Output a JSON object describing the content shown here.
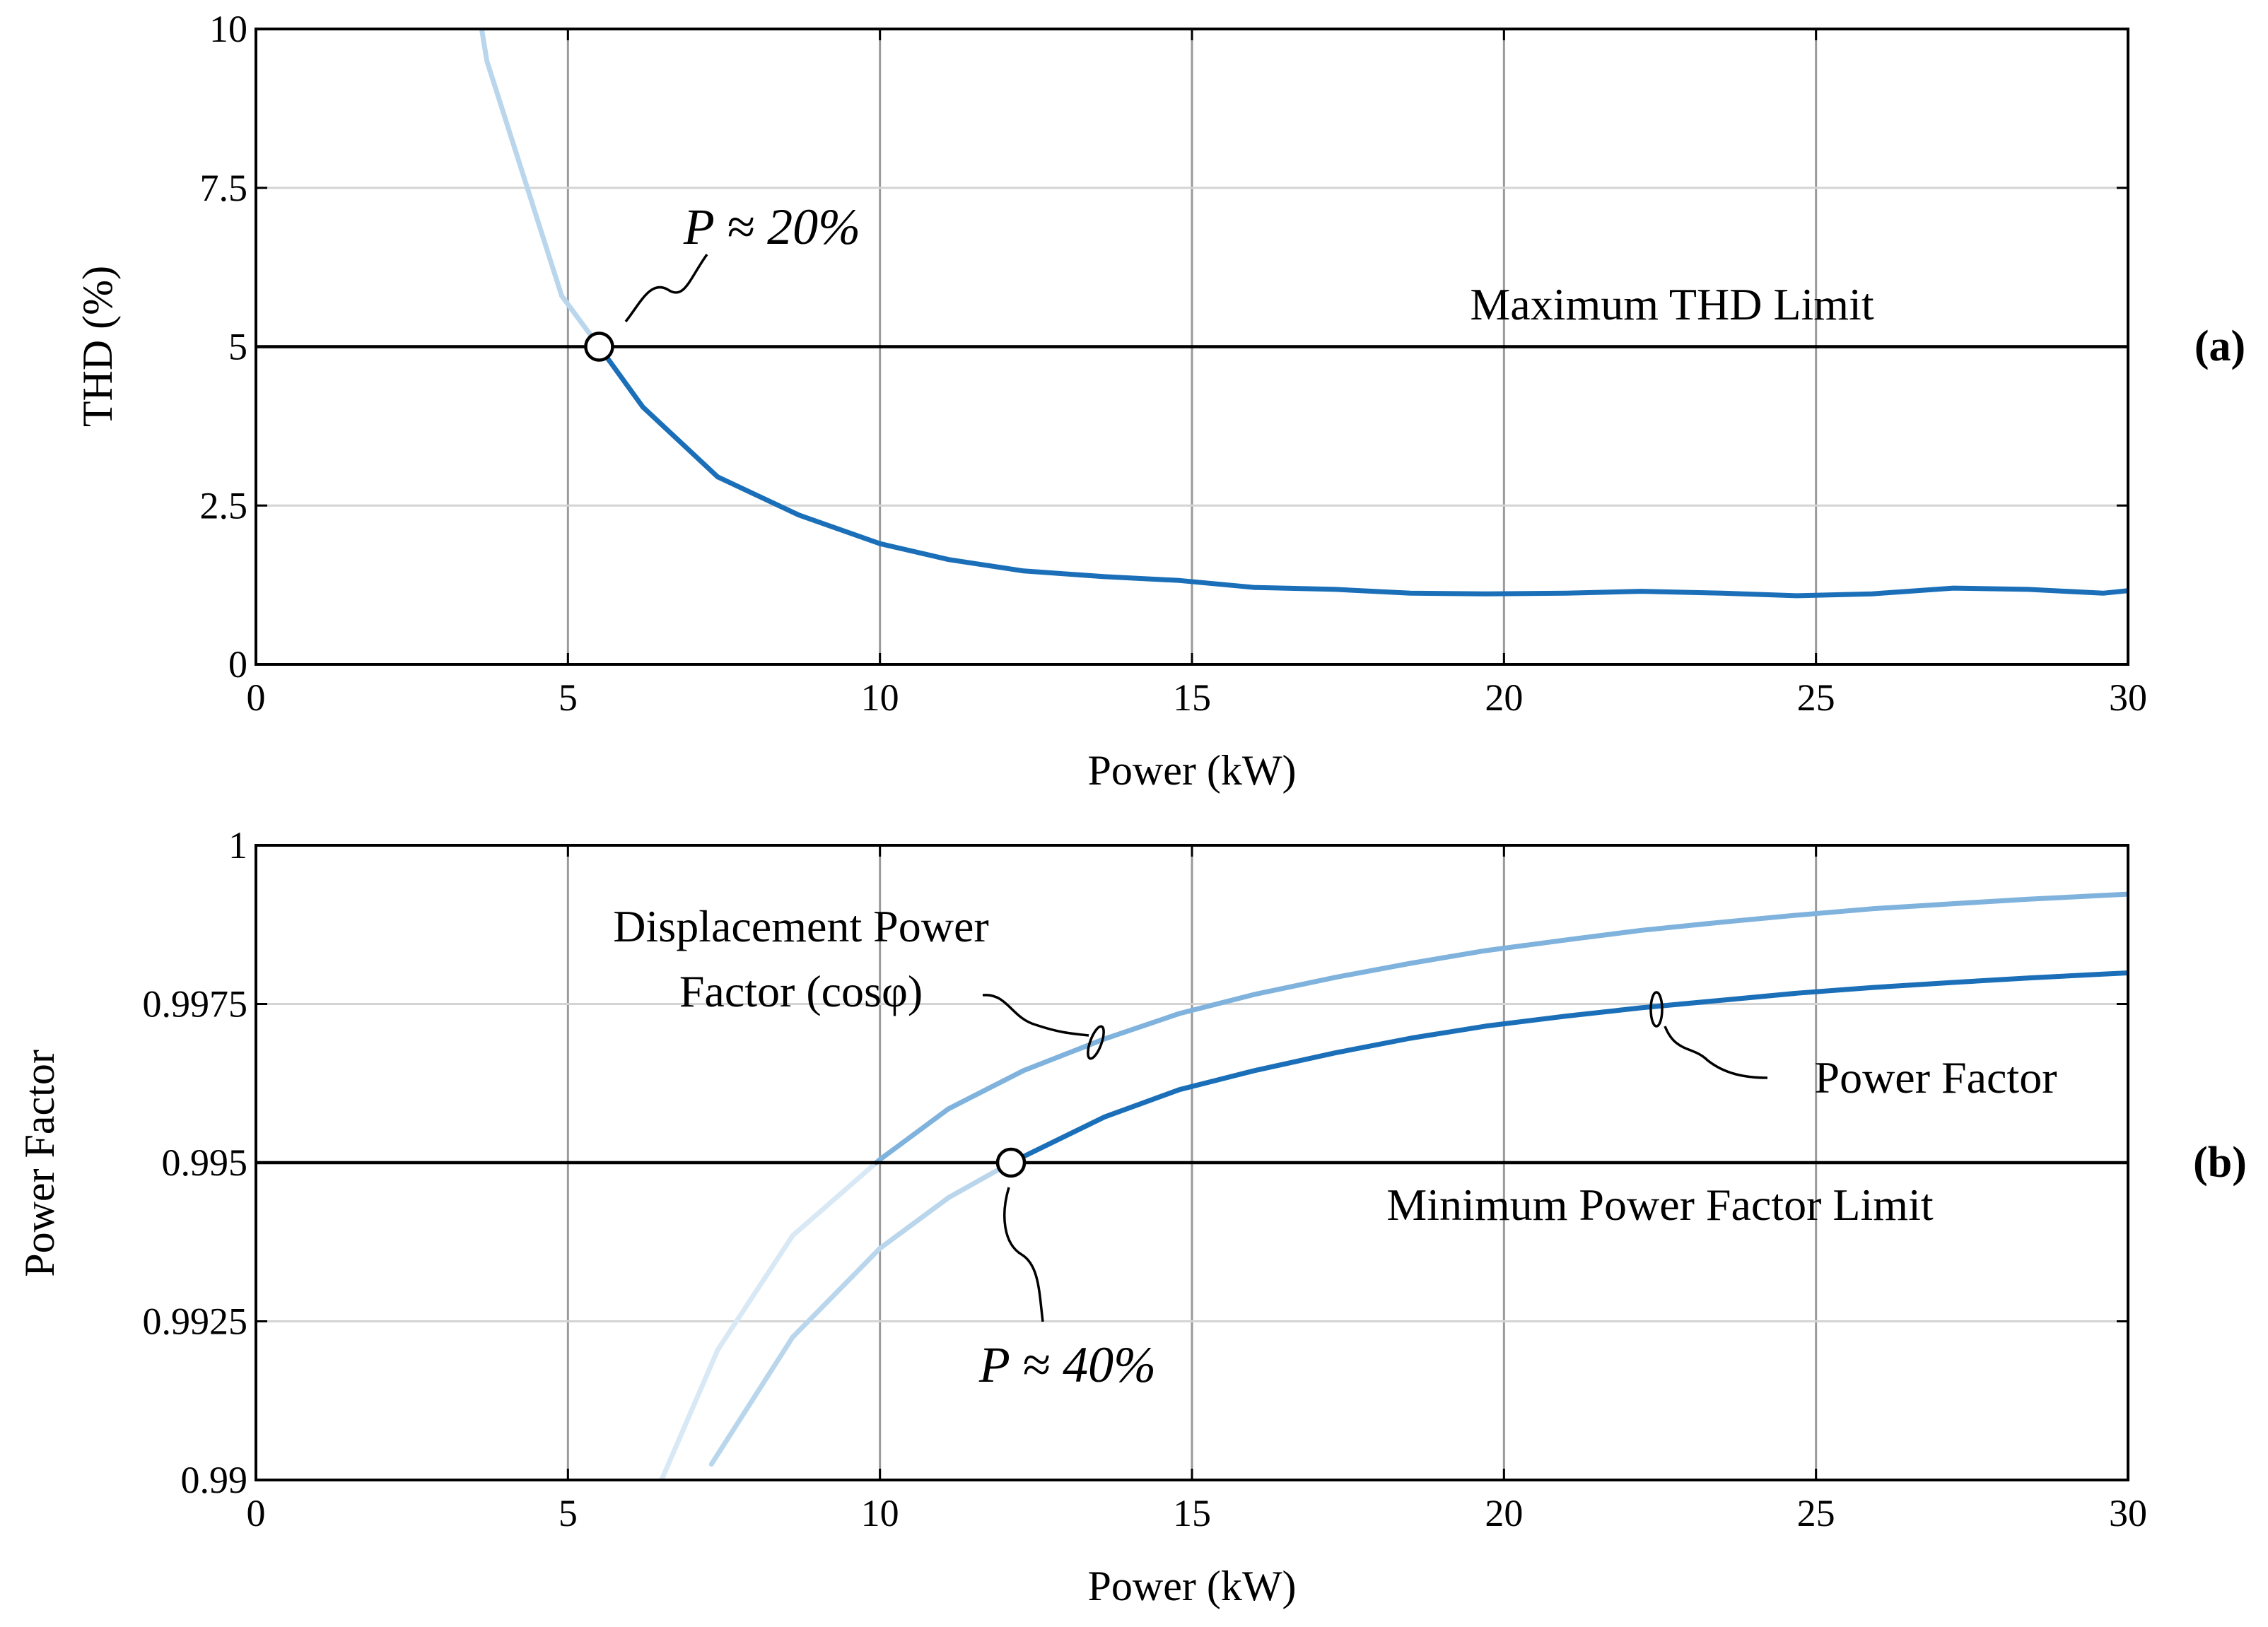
{
  "chart_data": [
    {
      "type": "line",
      "panel_label": "(a)",
      "xlabel": "Power (kW)",
      "ylabel": "THD (%)",
      "xlim": [
        0,
        30
      ],
      "ylim": [
        0,
        10
      ],
      "xticks": [
        "0",
        "5",
        "10",
        "15",
        "20",
        "25",
        "30"
      ],
      "yticks": [
        "0",
        "2.5",
        "5",
        "7.5",
        "10"
      ],
      "grid": true,
      "series": [
        {
          "name": "THD",
          "color_inactive": "#b9d6ec",
          "color_active": "#1a6fb8",
          "x": [
            3.6,
            3.7,
            4.9,
            5.5,
            6.2,
            7.4,
            8.7,
            10,
            11.1,
            12.3,
            13.6,
            14.8,
            16,
            17.3,
            18.5,
            19.7,
            21,
            22.2,
            23.5,
            24.7,
            25.9,
            27.2,
            28.4,
            29.6,
            30
          ],
          "y": [
            10.1,
            9.5,
            5.8,
            5.0,
            4.05,
            2.95,
            2.35,
            1.9,
            1.65,
            1.47,
            1.38,
            1.32,
            1.21,
            1.18,
            1.12,
            1.11,
            1.12,
            1.15,
            1.12,
            1.08,
            1.11,
            1.2,
            1.18,
            1.12,
            1.16
          ]
        }
      ],
      "hlines": [
        {
          "y": 5,
          "label": "Maximum THD Limit"
        }
      ],
      "marker": {
        "x": 5.5,
        "y": 5.0
      },
      "annotations": [
        {
          "text": "P ≈ 20%",
          "x": 7,
          "y": 6.7
        }
      ]
    },
    {
      "type": "line",
      "panel_label": "(b)",
      "xlabel": "Power (kW)",
      "ylabel": "Power Factor",
      "xlim": [
        0,
        30
      ],
      "ylim": [
        0.99,
        1
      ],
      "xticks": [
        "0",
        "5",
        "10",
        "15",
        "20",
        "25",
        "30"
      ],
      "yticks": [
        "0.99",
        "0.9925",
        "0.995",
        "0.9975",
        "1"
      ],
      "grid": true,
      "series": [
        {
          "name": "Displacement Power Factor (cosφ)",
          "color_inactive": "#d8e9f5",
          "color_active": "#7fb2dc",
          "x": [
            6.5,
            7.4,
            8.6,
            10,
            11.1,
            12.3,
            13.6,
            14.8,
            16,
            17.3,
            18.5,
            19.7,
            21,
            22.2,
            23.5,
            24.7,
            25.9,
            27.2,
            28.4,
            29.6,
            30
          ],
          "y": [
            0.99,
            0.99205,
            0.99385,
            0.99505,
            0.99585,
            0.99645,
            0.99695,
            0.99735,
            0.99765,
            0.99792,
            0.99814,
            0.99834,
            0.99851,
            0.99866,
            0.99879,
            0.9989,
            0.999,
            0.99908,
            0.99915,
            0.99921,
            0.99923
          ]
        },
        {
          "name": "Power Factor",
          "color_inactive": "#b9d6ec",
          "color_active": "#1a6fb8",
          "x": [
            7.3,
            8.6,
            10,
            11.1,
            12.1,
            13.6,
            14.8,
            16,
            17.3,
            18.5,
            19.7,
            21,
            22.2,
            23.5,
            24.7,
            25.9,
            27.2,
            28.4,
            29.6,
            30
          ],
          "y": [
            0.99025,
            0.99225,
            0.99365,
            0.99445,
            0.995,
            0.99572,
            0.99615,
            0.99645,
            0.99673,
            0.99696,
            0.99715,
            0.99731,
            0.99744,
            0.99756,
            0.99767,
            0.99776,
            0.99784,
            0.99791,
            0.99797,
            0.99799
          ]
        }
      ],
      "hlines": [
        {
          "y": 0.995,
          "label": "Minimum Power Factor Limit"
        }
      ],
      "marker": {
        "x": 12.1,
        "y": 0.995
      },
      "annotations": [
        {
          "text": "Displacement Power",
          "x": 8.8,
          "y": 0.99852
        },
        {
          "text": "Factor (cosφ)",
          "x": 8.8,
          "y": 0.99773
        },
        {
          "text": "Power Factor",
          "x": 26.5,
          "y": 0.99635
        },
        {
          "text": "P ≈ 40%",
          "x": 12.8,
          "y": 0.99175
        }
      ]
    }
  ]
}
